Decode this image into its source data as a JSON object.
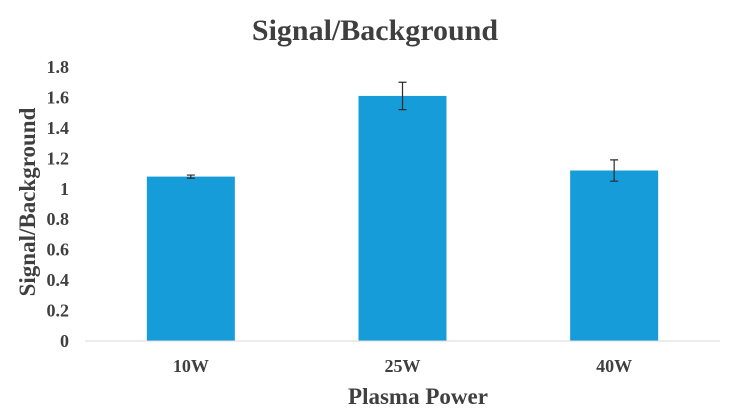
{
  "chart_data": {
    "type": "bar",
    "title": "Signal/Background",
    "xlabel": "Plasma Power",
    "ylabel": "Signal/Background",
    "categories": [
      "10W",
      "25W",
      "40W"
    ],
    "values": [
      1.08,
      1.61,
      1.12
    ],
    "errors": [
      0.01,
      0.09,
      0.07
    ],
    "ylim": [
      0,
      1.8
    ],
    "yticks": [
      "0",
      "0.2",
      "0.4",
      "0.6",
      "0.8",
      "1",
      "1.2",
      "1.4",
      "1.6",
      "1.8"
    ],
    "grid": false,
    "legend": "none",
    "colors": {
      "bar": "#169cd8",
      "text": "#3f3f3f",
      "axis": "#d9d9d9",
      "error_bar": "#2b2b2b"
    }
  }
}
